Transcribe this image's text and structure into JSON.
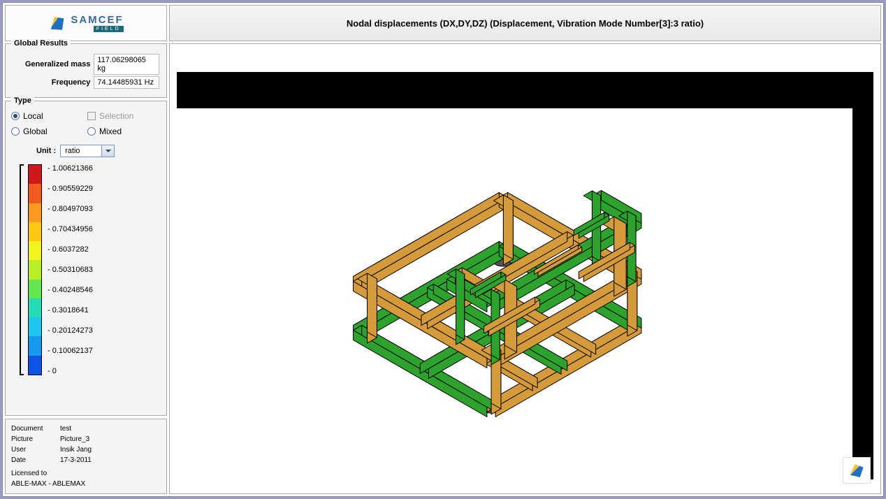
{
  "app": {
    "logo_main": "SAMCEF",
    "logo_sub": "FIELD"
  },
  "title": "Nodal displacements (DX,DY,DZ) (Displacement, Vibration Mode Number[3]:3 ratio)",
  "global_results": {
    "legend": "Global Results",
    "rows": [
      {
        "label": "Generalized mass",
        "value": "117.06298065 kg"
      },
      {
        "label": "Frequency",
        "value": "74.14485931 Hz"
      }
    ]
  },
  "type_group": {
    "legend": "Type",
    "options": {
      "local": {
        "label": "Local",
        "kind": "radio",
        "selected": true
      },
      "selection": {
        "label": "Selection",
        "kind": "check",
        "selected": false,
        "disabled": true
      },
      "global": {
        "label": "Global",
        "kind": "radio",
        "selected": false
      },
      "mixed": {
        "label": "Mixed",
        "kind": "radio",
        "selected": false
      }
    }
  },
  "unit": {
    "label": "Unit :",
    "value": "ratio"
  },
  "legend_scale": {
    "colors": [
      "#d0171a",
      "#f25b1f",
      "#fb9a1f",
      "#fcc814",
      "#f4f41c",
      "#b9ef24",
      "#62e74f",
      "#23dcb7",
      "#1cc6ee",
      "#169af0",
      "#0f54e6"
    ],
    "labels": [
      "1.00621366",
      "0.90559229",
      "0.80497093",
      "0.70434956",
      "0.6037282",
      "0.50310683",
      "0.40248546",
      "0.3018641",
      "0.20124273",
      "0.10062137",
      "0"
    ]
  },
  "info": {
    "document": {
      "k": "Document",
      "v": "test"
    },
    "picture": {
      "k": "Picture",
      "v": "Picture_3"
    },
    "user": {
      "k": "User",
      "v": "Insik Jang"
    },
    "date": {
      "k": "Date",
      "v": "17-3-2011"
    },
    "licensed": "Licensed to",
    "licensee": "ABLE-MAX - ABLEMAX"
  },
  "viewport": {
    "background": "#ffffff",
    "model_fill_primary": "#2da22d",
    "model_fill_secondary": "#d59a3a",
    "model_outline": "#000000"
  }
}
